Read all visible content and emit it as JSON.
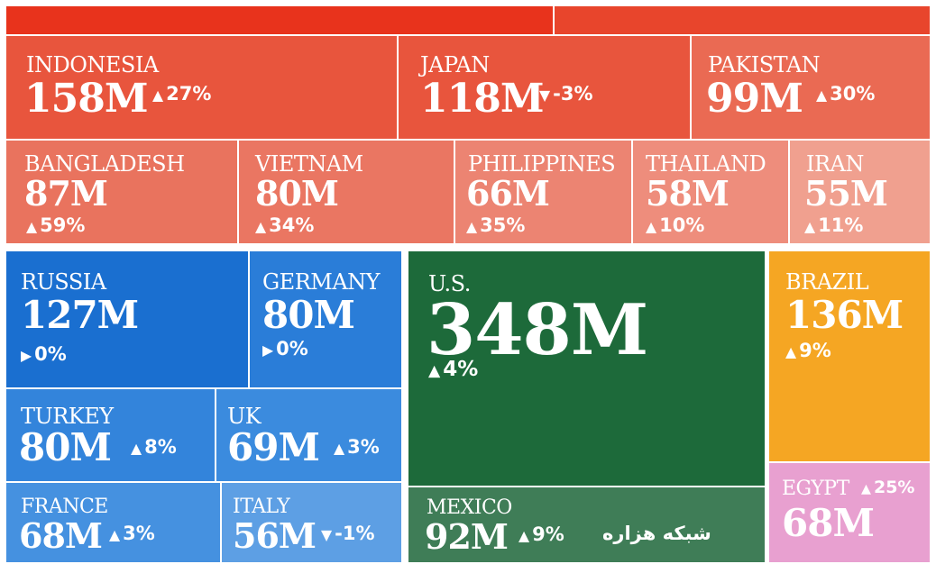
{
  "chart_data": {
    "type": "treemap",
    "unit": "M",
    "items": [
      {
        "name": "INDONESIA",
        "value": 158,
        "value_label": "158M",
        "change": "27%",
        "direction": "up",
        "color": "#e8553d"
      },
      {
        "name": "JAPAN",
        "value": 118,
        "value_label": "118M",
        "change": "-3%",
        "direction": "down",
        "color": "#e8553d"
      },
      {
        "name": "PAKISTAN",
        "value": 99,
        "value_label": "99M",
        "change": "30%",
        "direction": "up",
        "color": "#ea6a53"
      },
      {
        "name": "BANGLADESH",
        "value": 87,
        "value_label": "87M",
        "change": "59%",
        "direction": "up",
        "color": "#e9735e"
      },
      {
        "name": "VIETNAM",
        "value": 80,
        "value_label": "80M",
        "change": "34%",
        "direction": "up",
        "color": "#ea7662"
      },
      {
        "name": "PHILIPPINES",
        "value": 66,
        "value_label": "66M",
        "change": "35%",
        "direction": "up",
        "color": "#ec8472"
      },
      {
        "name": "THAILAND",
        "value": 58,
        "value_label": "58M",
        "change": "10%",
        "direction": "up",
        "color": "#ee8d7c"
      },
      {
        "name": "IRAN",
        "value": 55,
        "value_label": "55M",
        "change": "11%",
        "direction": "up",
        "color": "#f0a08f"
      },
      {
        "name": "RUSSIA",
        "value": 127,
        "value_label": "127M",
        "change": "0%",
        "direction": "flat",
        "color": "#1a6fd0"
      },
      {
        "name": "GERMANY",
        "value": 80,
        "value_label": "80M",
        "change": "0%",
        "direction": "flat",
        "color": "#2a7dd8"
      },
      {
        "name": "TURKEY",
        "value": 80,
        "value_label": "80M",
        "change": "8%",
        "direction": "up",
        "color": "#3384db"
      },
      {
        "name": "UK",
        "value": 69,
        "value_label": "69M",
        "change": "3%",
        "direction": "up",
        "color": "#3b8bde"
      },
      {
        "name": "FRANCE",
        "value": 68,
        "value_label": "68M",
        "change": "3%",
        "direction": "up",
        "color": "#4591e0"
      },
      {
        "name": "ITALY",
        "value": 56,
        "value_label": "56M",
        "change": "-1%",
        "direction": "down",
        "color": "#5d9fe4"
      },
      {
        "name": "U.S.",
        "value": 348,
        "value_label": "348M",
        "change": "4%",
        "direction": "up",
        "color": "#1d6a3a"
      },
      {
        "name": "MEXICO",
        "value": 92,
        "value_label": "92M",
        "change": "9%",
        "direction": "up",
        "color": "#3f7d57"
      },
      {
        "name": "BRAZIL",
        "value": 136,
        "value_label": "136M",
        "change": "9%",
        "direction": "up",
        "color": "#f5a623"
      },
      {
        "name": "EGYPT",
        "value": 68,
        "value_label": "68M",
        "change": "25%",
        "direction": "up",
        "color": "#e8a0d0"
      }
    ]
  },
  "top_strip_colors": [
    "#e8331c",
    "#e8452c"
  ],
  "watermark": "شبکه هزاره"
}
